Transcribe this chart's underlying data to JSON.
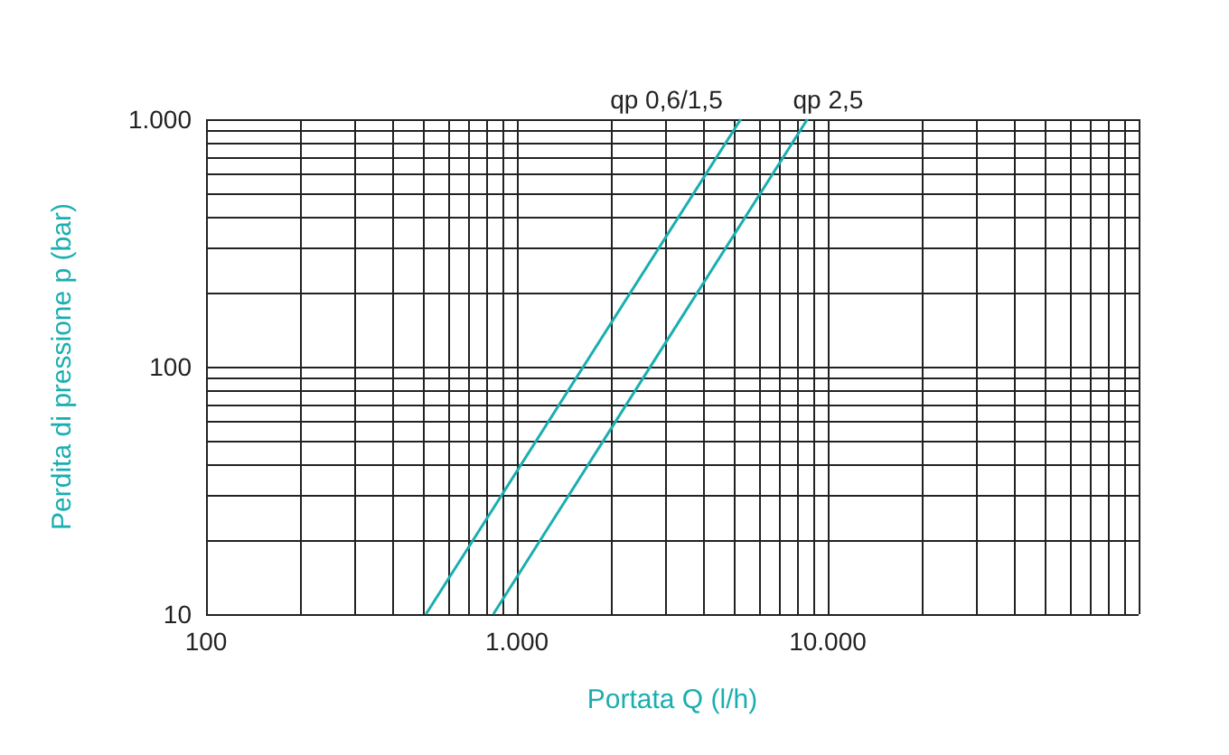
{
  "chart_data": {
    "type": "line",
    "xlabel": "Portata Q (l/h)",
    "ylabel": "Perdita di pressione p (bar)",
    "log": "xy",
    "grid": true,
    "legend": false,
    "marker": "none",
    "line_style": "solid",
    "xlim": [
      100,
      100000
    ],
    "ylim": [
      10,
      1000
    ],
    "xticks": [
      100,
      {
        "value": 1000,
        "label": "1.000"
      },
      {
        "value": 10000,
        "label": "10.000"
      }
    ],
    "yticks": [
      10,
      100,
      {
        "value": 1000,
        "label": "1.000"
      }
    ],
    "series": [
      {
        "name": "qp 0,6/1,5",
        "color": "#1aaeb0",
        "x": [
          510,
          5250
        ],
        "values": [
          10,
          1000
        ]
      },
      {
        "name": "qp 2,5",
        "color": "#1aaeb0",
        "x": [
          840,
          8600
        ],
        "values": [
          10,
          1000
        ]
      }
    ]
  }
}
